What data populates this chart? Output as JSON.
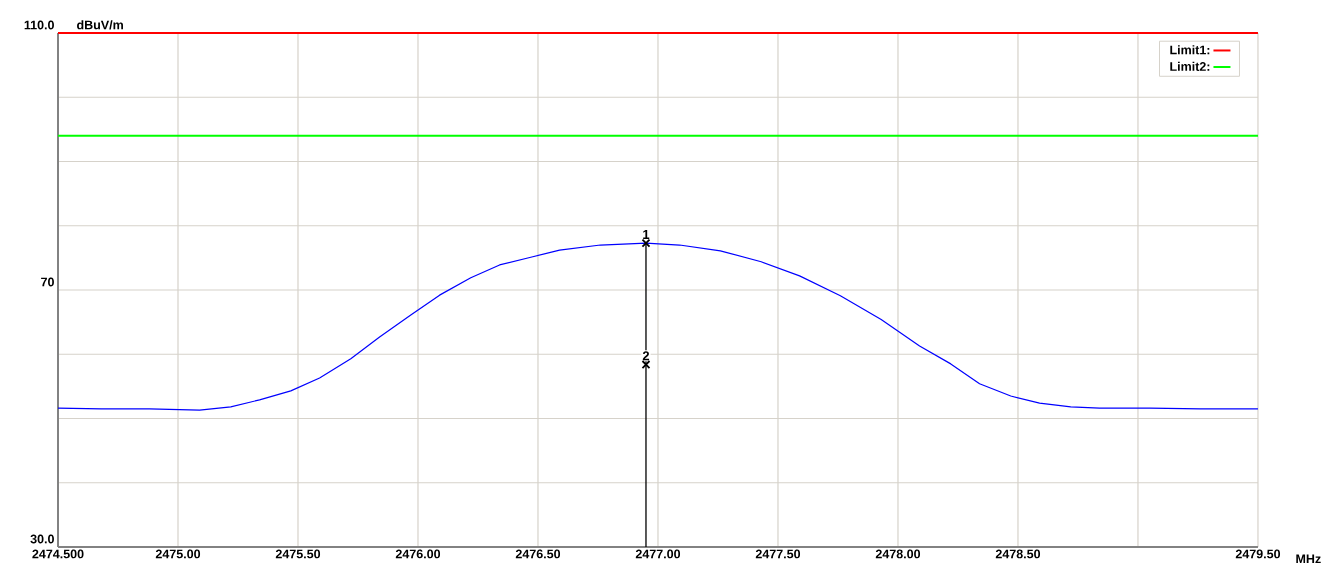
{
  "chart_data": {
    "type": "line",
    "ylabel": "dBuV/m",
    "xlabel": "MHz",
    "xlim": [
      2474.5,
      2479.5
    ],
    "xticks": [
      {
        "value": 2474.5,
        "label": "2474.500"
      },
      {
        "value": 2475.0,
        "label": "2475.00"
      },
      {
        "value": 2475.5,
        "label": "2475.50"
      },
      {
        "value": 2476.0,
        "label": "2476.00"
      },
      {
        "value": 2476.5,
        "label": "2476.50"
      },
      {
        "value": 2477.0,
        "label": "2477.00"
      },
      {
        "value": 2477.5,
        "label": "2477.50"
      },
      {
        "value": 2478.0,
        "label": "2478.00"
      },
      {
        "value": 2478.5,
        "label": "2478.50"
      },
      {
        "value": 2479.0,
        "label": null
      },
      {
        "value": 2479.5,
        "label": "2479.50"
      }
    ],
    "ylim": [
      30,
      110
    ],
    "yticks": [
      {
        "value": 30,
        "label": "30.0"
      },
      {
        "value": 40,
        "label": null
      },
      {
        "value": 50,
        "label": null
      },
      {
        "value": 60,
        "label": null
      },
      70,
      {
        "value": 80,
        "label": null
      },
      {
        "value": 90,
        "label": null
      },
      {
        "value": 100,
        "label": null
      },
      {
        "value": 110,
        "label": "110.0"
      }
    ],
    "grid": true,
    "legend": "top right",
    "marker": "none",
    "line_style": "solid",
    "series": [
      {
        "color": "#0000ff",
        "x": [
          2474.5,
          2474.68,
          2474.88,
          2475.09,
          2475.22,
          2475.34,
          2475.47,
          2475.59,
          2475.72,
          2475.84,
          2475.97,
          2476.09,
          2476.22,
          2476.34,
          2476.47,
          2476.59,
          2476.76,
          2476.95,
          2477.09,
          2477.26,
          2477.43,
          2477.59,
          2477.76,
          2477.93,
          2478.09,
          2478.22,
          2478.34,
          2478.47,
          2478.59,
          2478.72,
          2478.84,
          2479.05,
          2479.26,
          2479.5
        ],
        "values": [
          51.6,
          51.5,
          51.5,
          51.3,
          51.8,
          52.9,
          54.3,
          56.3,
          59.3,
          62.7,
          66.1,
          69.2,
          71.9,
          73.9,
          75.1,
          76.2,
          77.0,
          77.3,
          77.0,
          76.1,
          74.4,
          72.2,
          69.1,
          65.4,
          61.3,
          58.5,
          55.4,
          53.5,
          52.4,
          51.8,
          51.6,
          51.6,
          51.5,
          51.5
        ]
      },
      {
        "name": "Limit1:",
        "color": "#ff0000",
        "x": [
          2474.5,
          2479.5
        ],
        "values": [
          110,
          110
        ]
      },
      {
        "name": "Limit2:",
        "color": "#00ff00",
        "x": [
          2474.5,
          2479.5
        ],
        "values": [
          94,
          94
        ]
      },
      {
        "type": "scatter",
        "marker": "cross",
        "color": "#000000",
        "x": [
          2476.95,
          2476.95
        ],
        "values": [
          77.3,
          58.4
        ]
      }
    ],
    "ref_lines": [
      {
        "axis": "x",
        "value": 2476.95,
        "color": "#000000"
      }
    ],
    "annotations": [
      {
        "text": "1",
        "x": 2476.95,
        "y": 77.3
      },
      {
        "text": "2",
        "x": 2476.95,
        "y": 58.4
      }
    ]
  }
}
